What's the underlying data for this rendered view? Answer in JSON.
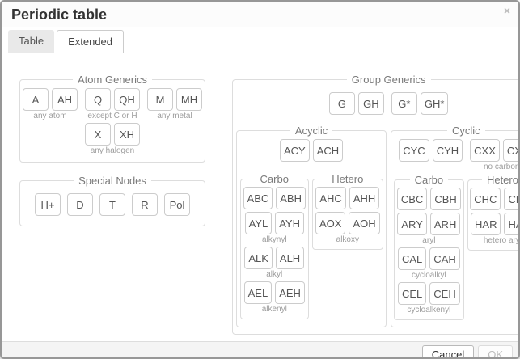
{
  "dialog": {
    "title": "Periodic table",
    "close_glyph": "×",
    "tabs": [
      {
        "label": "Table",
        "active": false
      },
      {
        "label": "Extended",
        "active": true
      }
    ],
    "footer": {
      "cancel_label": "Cancel",
      "ok_label": "OK",
      "ok_disabled": true
    }
  },
  "colors": {
    "dialog_border": "#979797",
    "footer_background": "#f4f4f4",
    "button_border": "#cccccc",
    "caption_text": "#9c9c9c",
    "disabled_text": "#bdbdbd"
  },
  "sections": {
    "atom_generics": {
      "legend": "Atom Generics",
      "rows": [
        {
          "pairs": [
            {
              "buttons": [
                "A",
                "AH"
              ],
              "label": "any atom"
            },
            {
              "buttons": [
                "Q",
                "QH"
              ],
              "label": "except C or H"
            },
            {
              "buttons": [
                "M",
                "MH"
              ],
              "label": "any metal"
            }
          ]
        },
        {
          "pairs": [
            {
              "buttons": [
                "X",
                "XH"
              ],
              "label": "any halogen"
            }
          ]
        }
      ]
    },
    "special_nodes": {
      "legend": "Special Nodes",
      "buttons": [
        "H+",
        "D",
        "T",
        "R",
        "Pol"
      ]
    },
    "group_generics": {
      "legend": "Group Generics",
      "top_pairs": [
        {
          "buttons": [
            "G",
            "GH"
          ],
          "label": ""
        },
        {
          "buttons": [
            "G*",
            "GH*"
          ],
          "label": ""
        }
      ],
      "acyclic": {
        "legend": "Acyclic",
        "top_pairs": [
          {
            "buttons": [
              "ACY",
              "ACH"
            ],
            "label": ""
          }
        ],
        "carbo": {
          "legend": "Carbo",
          "pairs": [
            {
              "buttons": [
                "ABC",
                "ABH"
              ],
              "label": ""
            },
            {
              "buttons": [
                "AYL",
                "AYH"
              ],
              "label": "alkynyl"
            },
            {
              "buttons": [
                "ALK",
                "ALH"
              ],
              "label": "alkyl"
            },
            {
              "buttons": [
                "AEL",
                "AEH"
              ],
              "label": "alkenyl"
            }
          ]
        },
        "hetero": {
          "legend": "Hetero",
          "pairs": [
            {
              "buttons": [
                "AHC",
                "AHH"
              ],
              "label": ""
            },
            {
              "buttons": [
                "AOX",
                "AOH"
              ],
              "label": "alkoxy"
            }
          ]
        }
      },
      "cyclic": {
        "legend": "Cyclic",
        "top_pairs": [
          {
            "buttons": [
              "CYC",
              "CYH"
            ],
            "label": ""
          },
          {
            "buttons": [
              "CXX",
              "CXH"
            ],
            "label": "no carbon"
          }
        ],
        "carbo": {
          "legend": "Carbo",
          "pairs": [
            {
              "buttons": [
                "CBC",
                "CBH"
              ],
              "label": ""
            },
            {
              "buttons": [
                "ARY",
                "ARH"
              ],
              "label": "aryl"
            },
            {
              "buttons": [
                "CAL",
                "CAH"
              ],
              "label": "cycloalkyl"
            },
            {
              "buttons": [
                "CEL",
                "CEH"
              ],
              "label": "cycloalkenyl"
            }
          ]
        },
        "hetero": {
          "legend": "Hetero",
          "pairs": [
            {
              "buttons": [
                "CHC",
                "CHH"
              ],
              "label": ""
            },
            {
              "buttons": [
                "HAR",
                "HAH"
              ],
              "label": "hetero aryl"
            }
          ]
        }
      }
    }
  }
}
